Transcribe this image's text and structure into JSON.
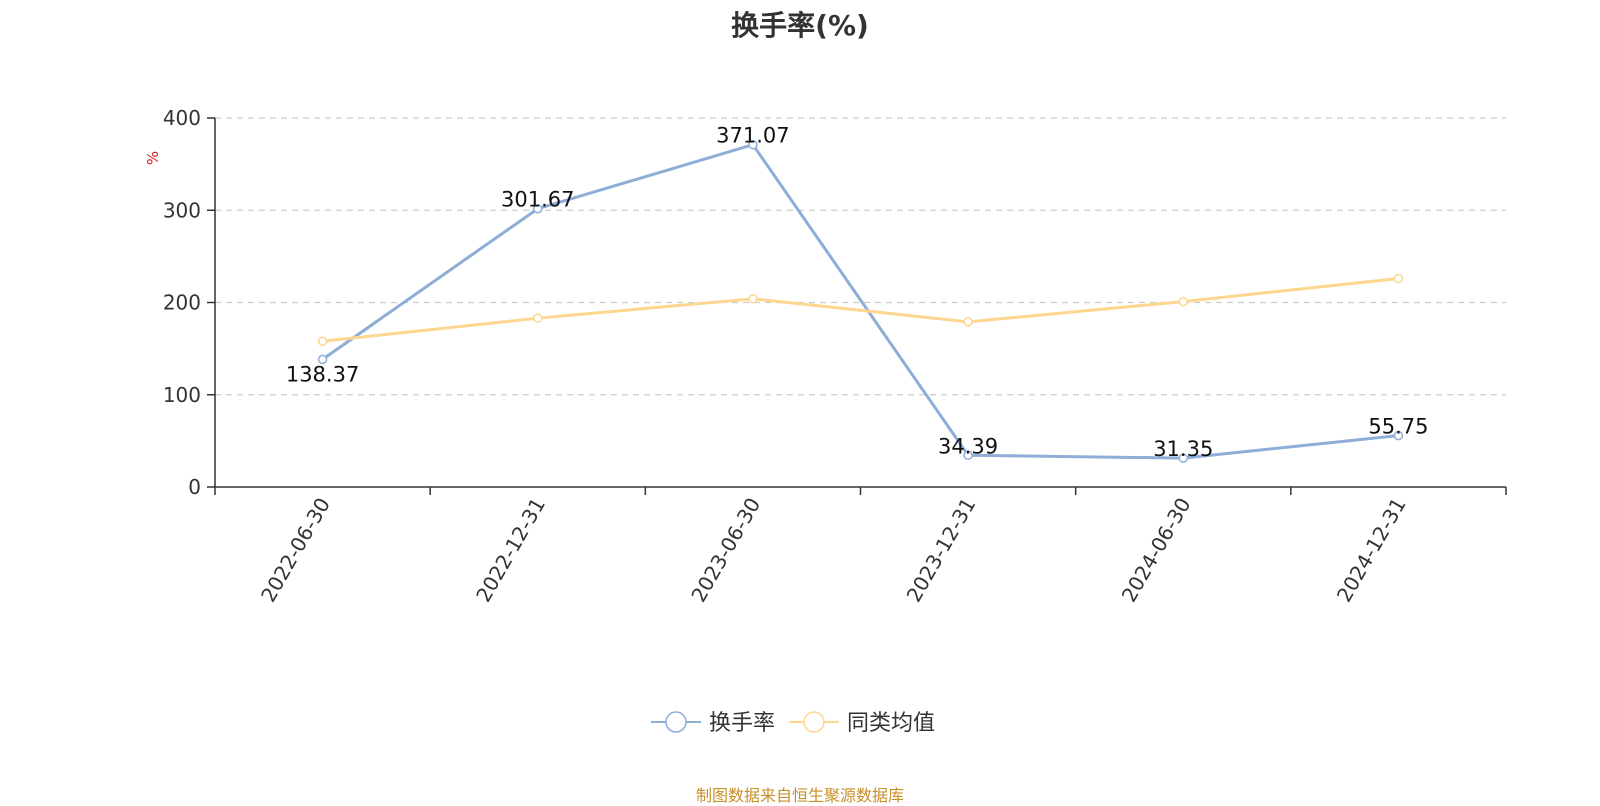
{
  "chart_data": {
    "type": "line",
    "title": "换手率(%)",
    "y_unit": "%",
    "source": "制图数据来自恒生聚源数据库",
    "categories": [
      "2022-06-30",
      "2022-12-31",
      "2023-06-30",
      "2023-12-31",
      "2024-06-30",
      "2024-12-31"
    ],
    "yticks": [
      "0",
      "100",
      "200",
      "300",
      "400"
    ],
    "ylim": [
      0,
      400
    ],
    "grid": "horizontal dashed",
    "legend_position": "bottom-center",
    "series": [
      {
        "name": "换手率",
        "color": "#8eadd7",
        "values": [
          138.37,
          301.67,
          371.07,
          34.39,
          31.35,
          55.75
        ],
        "labels": [
          "138.37",
          "301.67",
          "371.07",
          "34.39",
          "31.35",
          "55.75"
        ]
      },
      {
        "name": "同类均值",
        "color": "#fdd68f",
        "values": [
          158,
          183,
          204,
          179,
          201,
          226
        ]
      }
    ]
  }
}
